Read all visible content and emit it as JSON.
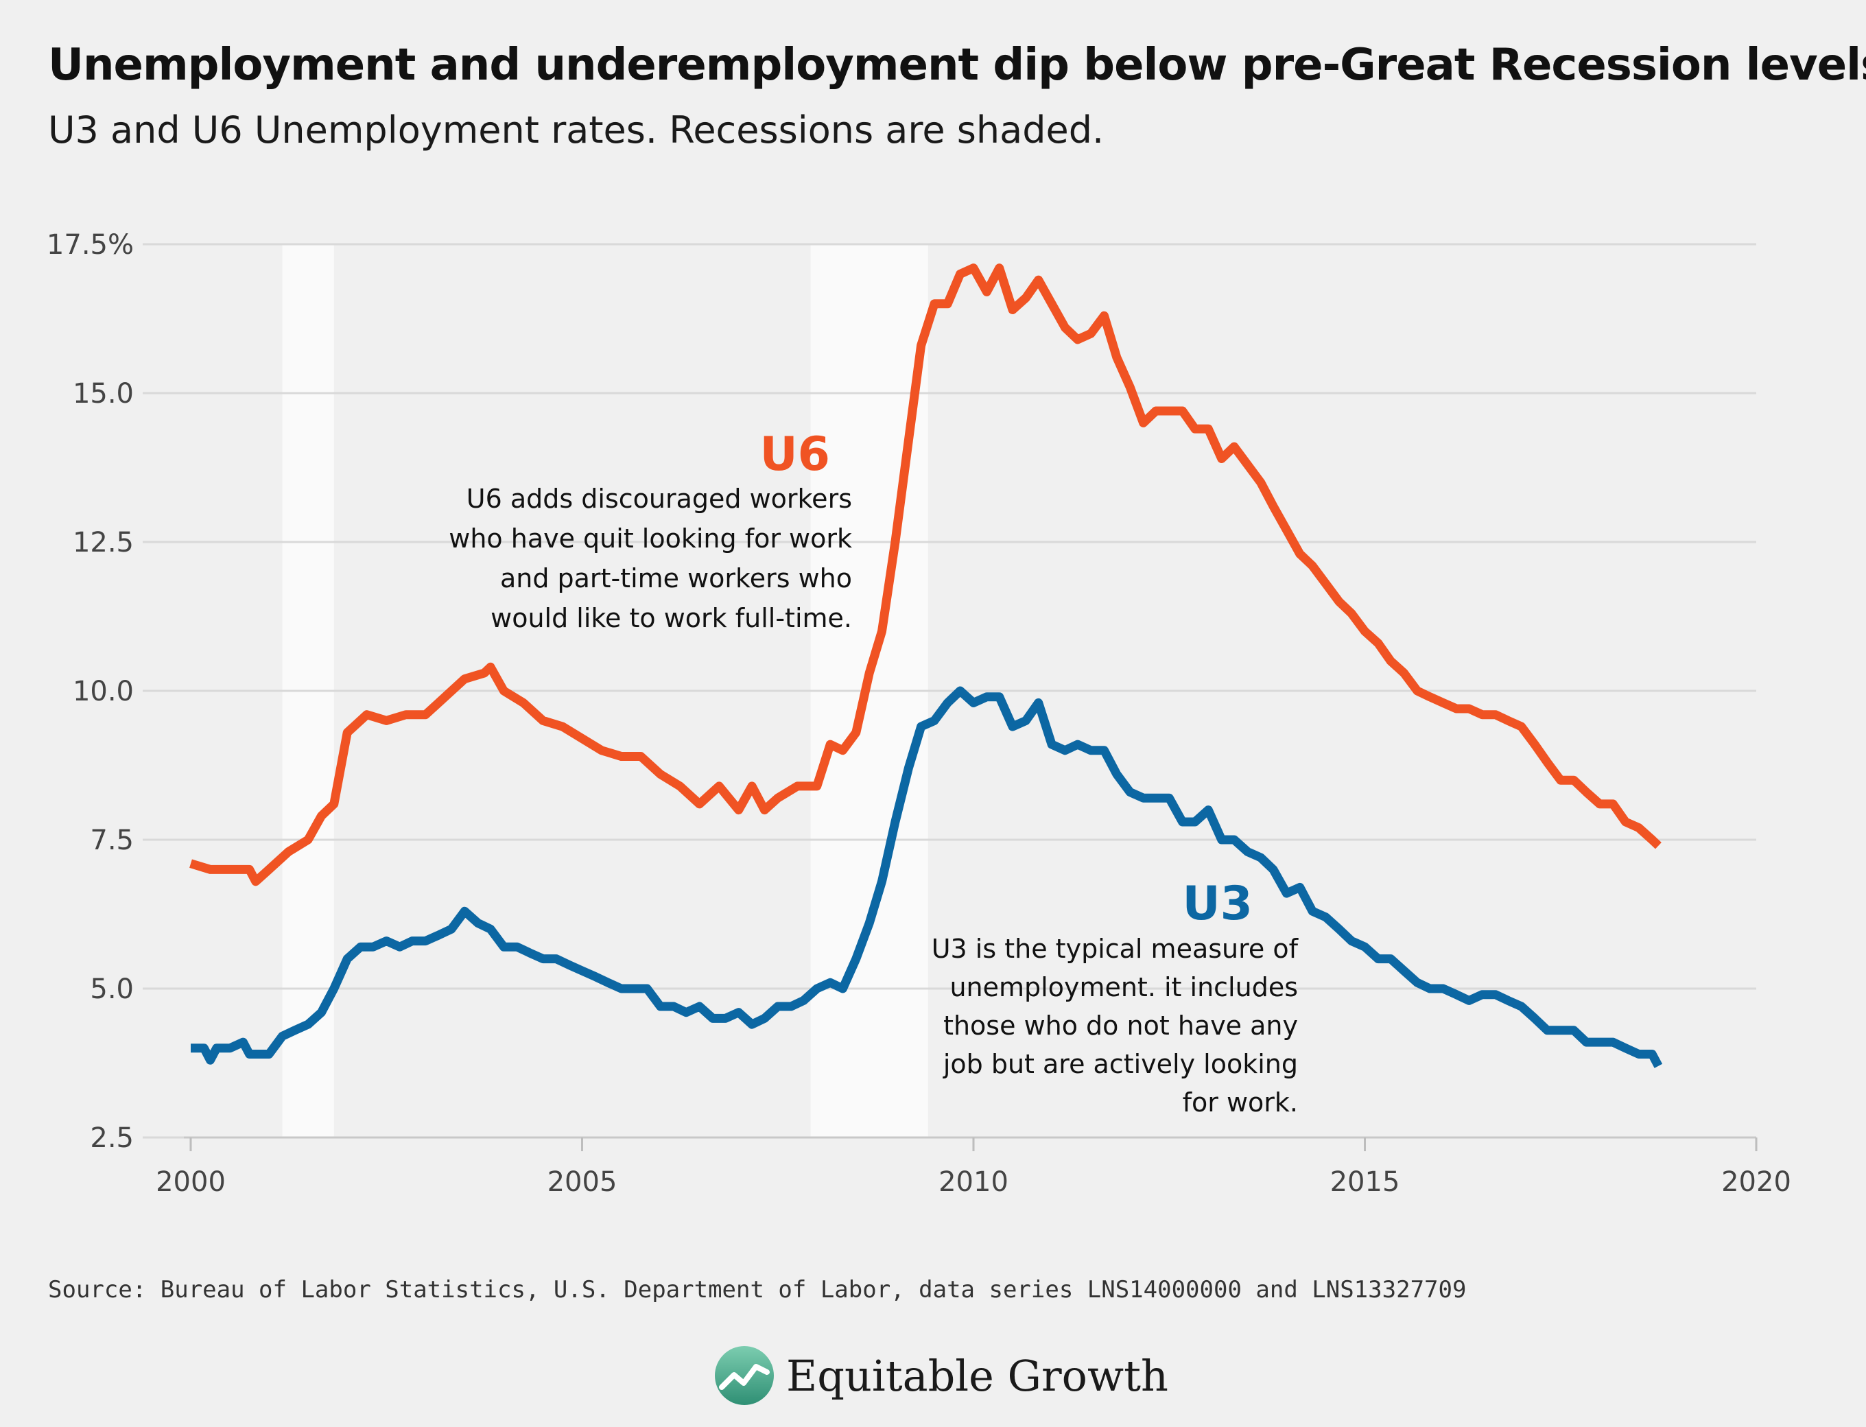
{
  "title": "Unemployment and underemployment dip below pre-Great Recession levels",
  "subtitle": "U3 and U6 Unemployment rates. Recessions are shaded.",
  "source": "Source: Bureau of Labor Statistics, U.S. Department of Labor, data series LNS14000000 and LNS13327709",
  "brand": {
    "name": "Equitable Growth",
    "icon": "growth-chart-logo-icon"
  },
  "colors": {
    "u6": "#f05323",
    "u3": "#0c67a3",
    "recession": "#fafafa",
    "grid": "#d9d9d9",
    "background": "#f0f0f0"
  },
  "chart_data": {
    "type": "line",
    "title": "Unemployment and underemployment dip below pre-Great Recession levels",
    "subtitle": "U3 and U6 Unemployment rates. Recessions are shaded.",
    "xlabel": "",
    "ylabel": "",
    "xlim": [
      2000,
      2020
    ],
    "ylim": [
      2.5,
      17.5
    ],
    "x_ticks": [
      "2000",
      "2005",
      "2010",
      "2015",
      "2020"
    ],
    "y_ticks": [
      "2.5",
      "5.0",
      "7.5",
      "10.0",
      "12.5",
      "15.0",
      "17.5%"
    ],
    "grid": "horizontal",
    "legend": "none (direct labels)",
    "recessions": [
      [
        2001.17,
        2001.83
      ],
      [
        2007.92,
        2009.42
      ]
    ],
    "series": [
      {
        "name": "U6",
        "label": "U6",
        "note": [
          "U6 adds discouraged workers",
          "who have quit looking for work",
          "and part-time workers who",
          "would like to work full-time."
        ],
        "points": [
          [
            2000.0,
            7.1
          ],
          [
            2000.25,
            7.0
          ],
          [
            2000.5,
            7.0
          ],
          [
            2000.75,
            7.0
          ],
          [
            2000.83,
            6.8
          ],
          [
            2001.0,
            7.0
          ],
          [
            2001.25,
            7.3
          ],
          [
            2001.5,
            7.5
          ],
          [
            2001.67,
            7.9
          ],
          [
            2001.83,
            8.1
          ],
          [
            2002.0,
            9.3
          ],
          [
            2002.25,
            9.6
          ],
          [
            2002.5,
            9.5
          ],
          [
            2002.75,
            9.6
          ],
          [
            2003.0,
            9.6
          ],
          [
            2003.25,
            9.9
          ],
          [
            2003.5,
            10.2
          ],
          [
            2003.75,
            10.3
          ],
          [
            2003.83,
            10.4
          ],
          [
            2004.0,
            10.0
          ],
          [
            2004.25,
            9.8
          ],
          [
            2004.5,
            9.5
          ],
          [
            2004.75,
            9.4
          ],
          [
            2005.0,
            9.2
          ],
          [
            2005.25,
            9.0
          ],
          [
            2005.5,
            8.9
          ],
          [
            2005.75,
            8.9
          ],
          [
            2006.0,
            8.6
          ],
          [
            2006.25,
            8.4
          ],
          [
            2006.5,
            8.1
          ],
          [
            2006.75,
            8.4
          ],
          [
            2007.0,
            8.0
          ],
          [
            2007.17,
            8.4
          ],
          [
            2007.33,
            8.0
          ],
          [
            2007.5,
            8.2
          ],
          [
            2007.75,
            8.4
          ],
          [
            2008.0,
            8.4
          ],
          [
            2008.17,
            9.1
          ],
          [
            2008.33,
            9.0
          ],
          [
            2008.5,
            9.3
          ],
          [
            2008.67,
            10.3
          ],
          [
            2008.83,
            11.0
          ],
          [
            2009.0,
            12.5
          ],
          [
            2009.17,
            14.2
          ],
          [
            2009.33,
            15.8
          ],
          [
            2009.5,
            16.5
          ],
          [
            2009.67,
            16.5
          ],
          [
            2009.83,
            17.0
          ],
          [
            2010.0,
            17.1
          ],
          [
            2010.17,
            16.7
          ],
          [
            2010.33,
            17.1
          ],
          [
            2010.5,
            16.4
          ],
          [
            2010.67,
            16.6
          ],
          [
            2010.83,
            16.9
          ],
          [
            2011.0,
            16.5
          ],
          [
            2011.17,
            16.1
          ],
          [
            2011.33,
            15.9
          ],
          [
            2011.5,
            16.0
          ],
          [
            2011.67,
            16.3
          ],
          [
            2011.83,
            15.6
          ],
          [
            2012.0,
            15.1
          ],
          [
            2012.17,
            14.5
          ],
          [
            2012.33,
            14.7
          ],
          [
            2012.5,
            14.7
          ],
          [
            2012.67,
            14.7
          ],
          [
            2012.83,
            14.4
          ],
          [
            2013.0,
            14.4
          ],
          [
            2013.17,
            13.9
          ],
          [
            2013.33,
            14.1
          ],
          [
            2013.5,
            13.8
          ],
          [
            2013.67,
            13.5
          ],
          [
            2013.83,
            13.1
          ],
          [
            2014.0,
            12.7
          ],
          [
            2014.17,
            12.3
          ],
          [
            2014.33,
            12.1
          ],
          [
            2014.5,
            11.8
          ],
          [
            2014.67,
            11.5
          ],
          [
            2014.83,
            11.3
          ],
          [
            2015.0,
            11.0
          ],
          [
            2015.17,
            10.8
          ],
          [
            2015.33,
            10.5
          ],
          [
            2015.5,
            10.3
          ],
          [
            2015.67,
            10.0
          ],
          [
            2015.83,
            9.9
          ],
          [
            2016.0,
            9.8
          ],
          [
            2016.17,
            9.7
          ],
          [
            2016.33,
            9.7
          ],
          [
            2016.5,
            9.6
          ],
          [
            2016.67,
            9.6
          ],
          [
            2016.83,
            9.5
          ],
          [
            2017.0,
            9.4
          ],
          [
            2017.17,
            9.1
          ],
          [
            2017.33,
            8.8
          ],
          [
            2017.5,
            8.5
          ],
          [
            2017.67,
            8.5
          ],
          [
            2017.83,
            8.3
          ],
          [
            2018.0,
            8.1
          ],
          [
            2018.17,
            8.1
          ],
          [
            2018.33,
            7.8
          ],
          [
            2018.5,
            7.7
          ],
          [
            2018.67,
            7.5
          ],
          [
            2018.75,
            7.4
          ]
        ]
      },
      {
        "name": "U3",
        "label": "U3",
        "note": [
          "U3 is the typical measure of",
          "unemployment. it includes",
          "those who do not have any",
          "job but are actively looking",
          "for work."
        ],
        "points": [
          [
            2000.0,
            4.0
          ],
          [
            2000.17,
            4.0
          ],
          [
            2000.25,
            3.8
          ],
          [
            2000.33,
            4.0
          ],
          [
            2000.5,
            4.0
          ],
          [
            2000.67,
            4.1
          ],
          [
            2000.75,
            3.9
          ],
          [
            2001.0,
            3.9
          ],
          [
            2001.17,
            4.2
          ],
          [
            2001.33,
            4.3
          ],
          [
            2001.5,
            4.4
          ],
          [
            2001.67,
            4.6
          ],
          [
            2001.83,
            5.0
          ],
          [
            2002.0,
            5.5
          ],
          [
            2002.17,
            5.7
          ],
          [
            2002.33,
            5.7
          ],
          [
            2002.5,
            5.8
          ],
          [
            2002.67,
            5.7
          ],
          [
            2002.83,
            5.8
          ],
          [
            2003.0,
            5.8
          ],
          [
            2003.17,
            5.9
          ],
          [
            2003.33,
            6.0
          ],
          [
            2003.5,
            6.3
          ],
          [
            2003.67,
            6.1
          ],
          [
            2003.83,
            6.0
          ],
          [
            2004.0,
            5.7
          ],
          [
            2004.17,
            5.7
          ],
          [
            2004.33,
            5.6
          ],
          [
            2004.5,
            5.5
          ],
          [
            2004.67,
            5.5
          ],
          [
            2004.83,
            5.4
          ],
          [
            2005.0,
            5.3
          ],
          [
            2005.17,
            5.2
          ],
          [
            2005.33,
            5.1
          ],
          [
            2005.5,
            5.0
          ],
          [
            2005.67,
            5.0
          ],
          [
            2005.83,
            5.0
          ],
          [
            2006.0,
            4.7
          ],
          [
            2006.17,
            4.7
          ],
          [
            2006.33,
            4.6
          ],
          [
            2006.5,
            4.7
          ],
          [
            2006.67,
            4.5
          ],
          [
            2006.83,
            4.5
          ],
          [
            2007.0,
            4.6
          ],
          [
            2007.17,
            4.4
          ],
          [
            2007.33,
            4.5
          ],
          [
            2007.5,
            4.7
          ],
          [
            2007.67,
            4.7
          ],
          [
            2007.83,
            4.8
          ],
          [
            2008.0,
            5.0
          ],
          [
            2008.17,
            5.1
          ],
          [
            2008.33,
            5.0
          ],
          [
            2008.5,
            5.5
          ],
          [
            2008.67,
            6.1
          ],
          [
            2008.83,
            6.8
          ],
          [
            2009.0,
            7.8
          ],
          [
            2009.17,
            8.7
          ],
          [
            2009.33,
            9.4
          ],
          [
            2009.5,
            9.5
          ],
          [
            2009.67,
            9.8
          ],
          [
            2009.83,
            10.0
          ],
          [
            2010.0,
            9.8
          ],
          [
            2010.17,
            9.9
          ],
          [
            2010.33,
            9.9
          ],
          [
            2010.5,
            9.4
          ],
          [
            2010.67,
            9.5
          ],
          [
            2010.83,
            9.8
          ],
          [
            2011.0,
            9.1
          ],
          [
            2011.17,
            9.0
          ],
          [
            2011.33,
            9.1
          ],
          [
            2011.5,
            9.0
          ],
          [
            2011.67,
            9.0
          ],
          [
            2011.83,
            8.6
          ],
          [
            2012.0,
            8.3
          ],
          [
            2012.17,
            8.2
          ],
          [
            2012.33,
            8.2
          ],
          [
            2012.5,
            8.2
          ],
          [
            2012.67,
            7.8
          ],
          [
            2012.83,
            7.8
          ],
          [
            2013.0,
            8.0
          ],
          [
            2013.17,
            7.5
          ],
          [
            2013.33,
            7.5
          ],
          [
            2013.5,
            7.3
          ],
          [
            2013.67,
            7.2
          ],
          [
            2013.83,
            7.0
          ],
          [
            2014.0,
            6.6
          ],
          [
            2014.17,
            6.7
          ],
          [
            2014.33,
            6.3
          ],
          [
            2014.5,
            6.2
          ],
          [
            2014.67,
            6.0
          ],
          [
            2014.83,
            5.8
          ],
          [
            2015.0,
            5.7
          ],
          [
            2015.17,
            5.5
          ],
          [
            2015.33,
            5.5
          ],
          [
            2015.5,
            5.3
          ],
          [
            2015.67,
            5.1
          ],
          [
            2015.83,
            5.0
          ],
          [
            2016.0,
            5.0
          ],
          [
            2016.17,
            4.9
          ],
          [
            2016.33,
            4.8
          ],
          [
            2016.5,
            4.9
          ],
          [
            2016.67,
            4.9
          ],
          [
            2016.83,
            4.8
          ],
          [
            2017.0,
            4.7
          ],
          [
            2017.17,
            4.5
          ],
          [
            2017.33,
            4.3
          ],
          [
            2017.5,
            4.3
          ],
          [
            2017.67,
            4.3
          ],
          [
            2017.83,
            4.1
          ],
          [
            2018.0,
            4.1
          ],
          [
            2018.17,
            4.1
          ],
          [
            2018.33,
            4.0
          ],
          [
            2018.5,
            3.9
          ],
          [
            2018.67,
            3.9
          ],
          [
            2018.75,
            3.7
          ]
        ]
      }
    ]
  }
}
